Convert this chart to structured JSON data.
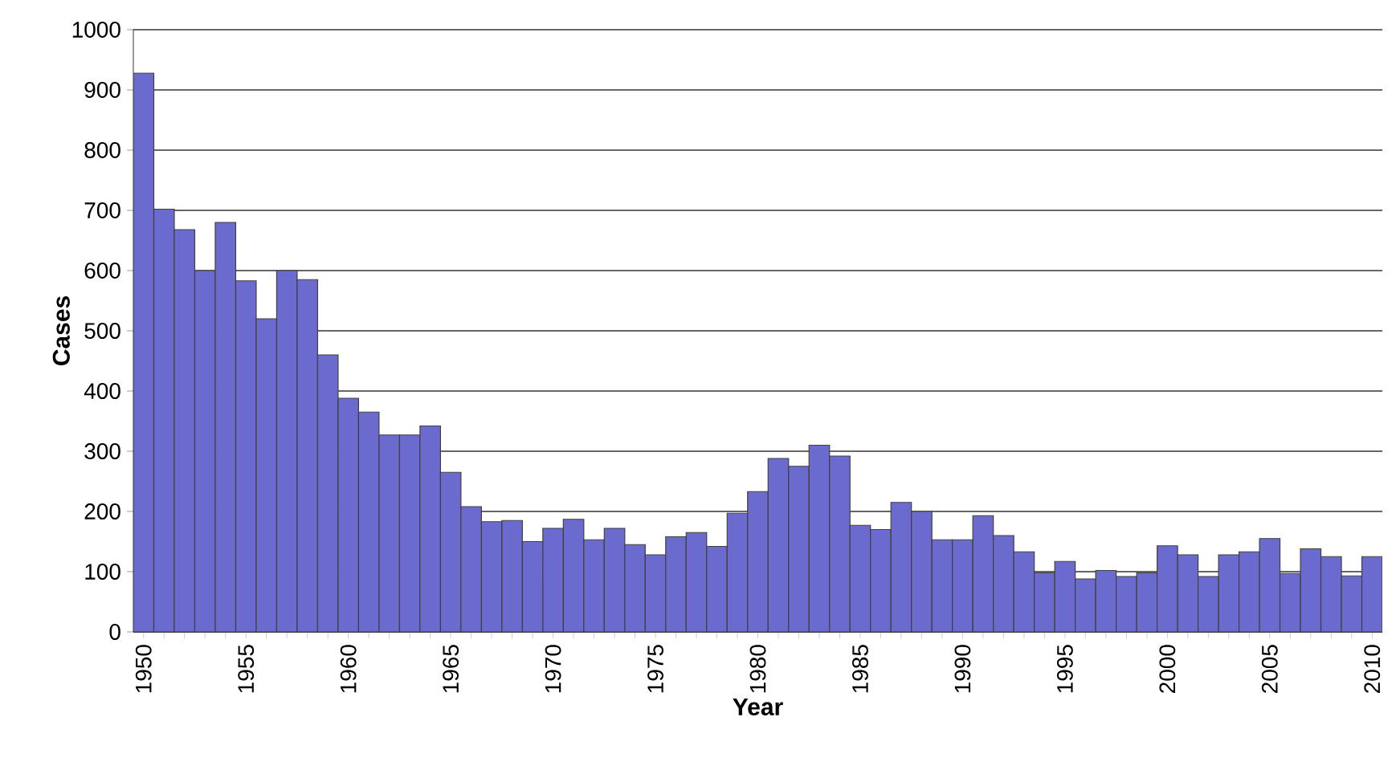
{
  "chart_data": {
    "type": "bar",
    "xlabel": "Year",
    "ylabel": "Cases",
    "categories": [
      "1950",
      null,
      null,
      null,
      null,
      "1955",
      null,
      null,
      null,
      null,
      "1960",
      null,
      null,
      null,
      null,
      "1965",
      null,
      null,
      null,
      null,
      "1970",
      null,
      null,
      null,
      null,
      "1975",
      null,
      null,
      null,
      null,
      "1980",
      null,
      null,
      null,
      null,
      "1985",
      null,
      null,
      null,
      null,
      "1990",
      null,
      null,
      null,
      null,
      "1995",
      null,
      null,
      null,
      null,
      "2000",
      null,
      null,
      null,
      null,
      "2005",
      null,
      null,
      null,
      null,
      "2010"
    ],
    "values": [
      928,
      702,
      668,
      600,
      680,
      583,
      520,
      600,
      585,
      460,
      388,
      365,
      327,
      327,
      342,
      265,
      208,
      183,
      185,
      150,
      172,
      187,
      153,
      172,
      145,
      128,
      158,
      165,
      142,
      197,
      233,
      288,
      275,
      310,
      292,
      177,
      170,
      215,
      200,
      153,
      153,
      193,
      160,
      133,
      98,
      117,
      88,
      102,
      92,
      98,
      143,
      128,
      92,
      128,
      133,
      155,
      97,
      138,
      125,
      93,
      125
    ],
    "color": "#6b6bcf",
    "ylim": [
      0,
      1000
    ],
    "yticks": [
      0,
      100,
      200,
      300,
      400,
      500,
      600,
      700,
      800,
      900,
      1000
    ],
    "grid": "y"
  }
}
